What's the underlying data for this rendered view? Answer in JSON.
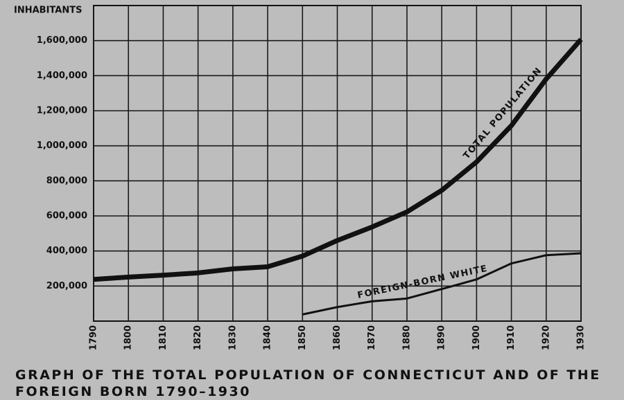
{
  "chart_data": {
    "type": "line",
    "title": "GRAPH OF THE TOTAL POPULATION OF CONNECTICUT AND OF THE FOREIGN BORN 1790–1930",
    "y_label": "INHABITANTS",
    "x": [
      1790,
      1800,
      1810,
      1820,
      1830,
      1840,
      1850,
      1860,
      1870,
      1880,
      1890,
      1900,
      1910,
      1920,
      1930
    ],
    "series": [
      {
        "name": "TOTAL POPULATION",
        "color": "#111111",
        "values": [
          238000,
          251000,
          262000,
          275000,
          298000,
          310000,
          371000,
          460000,
          537000,
          623000,
          746000,
          908000,
          1115000,
          1381000,
          1607000
        ]
      },
      {
        "name": "FOREIGN-BORN WHITE",
        "color": "#111111",
        "values": [
          null,
          null,
          null,
          null,
          null,
          null,
          38000,
          80000,
          113000,
          129000,
          183000,
          238000,
          329000,
          376000,
          387000
        ]
      }
    ],
    "xlim": [
      1790,
      1930
    ],
    "xticks": [
      1790,
      1800,
      1810,
      1820,
      1830,
      1840,
      1850,
      1860,
      1870,
      1880,
      1890,
      1900,
      1910,
      1920,
      1930
    ],
    "ylim": [
      0,
      1800000
    ],
    "yticks": [
      {
        "value": 200000,
        "label": "200,000"
      },
      {
        "value": 400000,
        "label": "400,000"
      },
      {
        "value": 600000,
        "label": "600,000"
      },
      {
        "value": 800000,
        "label": "800,000"
      },
      {
        "value": 1000000,
        "label": "1,000,000"
      },
      {
        "value": 1200000,
        "label": "1,200,000"
      },
      {
        "value": 1400000,
        "label": "1,400,000"
      },
      {
        "value": 1600000,
        "label": "1,600,000"
      }
    ],
    "grid": true
  }
}
